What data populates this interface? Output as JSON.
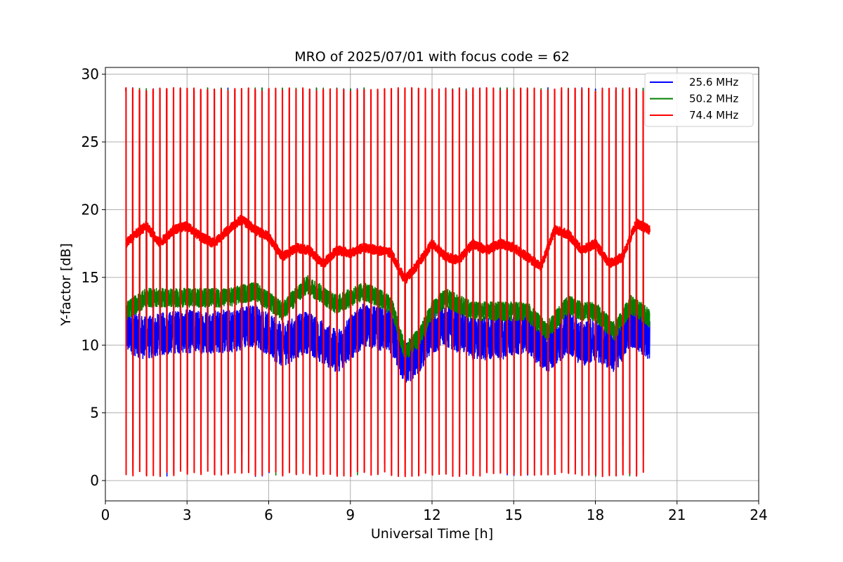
{
  "chart_data": {
    "type": "line",
    "title": "MRO of 2025/07/01 with focus code = 62",
    "xlabel": "Universal Time [h]",
    "ylabel": "Y-factor [dB]",
    "xlim": [
      0,
      24
    ],
    "ylim": [
      -1.5,
      30.5
    ],
    "xticks": [
      0,
      3,
      6,
      9,
      12,
      15,
      18,
      21,
      24
    ],
    "xtick_labels": [
      "0",
      "3",
      "6",
      "9",
      "12",
      "15",
      "18",
      "21",
      "24"
    ],
    "yticks": [
      0,
      5,
      10,
      15,
      20,
      25,
      30
    ],
    "ytick_labels": [
      "0",
      "5",
      "10",
      "15",
      "20",
      "25",
      "30"
    ],
    "grid": true,
    "legend_position": "top-right",
    "data_time_range": [
      0.75,
      20.0
    ],
    "calibration_period_h": 0.25,
    "calibration_spike_level": {
      "25.6 MHz": 29.0,
      "50.2 MHz": 29.0,
      "74.4 MHz": 29.0
    },
    "calibration_dip_level": 0.3,
    "series": [
      {
        "name": "25.6 MHz",
        "color": "#0000ff",
        "x": [
          0.75,
          1.5,
          2.5,
          3.5,
          4.5,
          5.5,
          6.5,
          7.4,
          8.5,
          9.5,
          10.5,
          11.0,
          11.5,
          12.0,
          12.5,
          13.5,
          14.5,
          15.5,
          16.2,
          17.0,
          17.5,
          18.0,
          18.7,
          19.3,
          20.0
        ],
        "y": [
          11.0,
          10.5,
          11.0,
          11.0,
          11.0,
          11.5,
          10.0,
          11.0,
          9.5,
          11.5,
          11.0,
          8.5,
          9.5,
          11.0,
          11.5,
          10.5,
          10.5,
          11.0,
          9.5,
          11.0,
          10.0,
          10.5,
          9.5,
          11.5,
          10.5
        ]
      },
      {
        "name": "50.2 MHz",
        "color": "#008000",
        "x": [
          0.75,
          1.5,
          2.5,
          3.5,
          4.5,
          5.5,
          6.5,
          7.4,
          8.5,
          9.5,
          10.5,
          11.0,
          11.5,
          12.0,
          12.5,
          13.5,
          14.5,
          15.5,
          16.2,
          17.0,
          17.5,
          18.0,
          18.7,
          19.3,
          20.0
        ],
        "y": [
          12.5,
          13.5,
          13.5,
          13.5,
          13.5,
          14.0,
          12.5,
          14.5,
          13.0,
          14.0,
          13.0,
          9.5,
          10.5,
          12.5,
          13.5,
          12.5,
          12.5,
          12.5,
          11.0,
          13.0,
          12.5,
          12.5,
          11.0,
          13.0,
          12.0
        ]
      },
      {
        "name": "74.4 MHz",
        "color": "#ff0000",
        "x": [
          0.75,
          1.0,
          1.5,
          2.0,
          2.5,
          3.0,
          3.5,
          4.0,
          4.5,
          5.0,
          5.5,
          6.0,
          6.5,
          7.0,
          7.5,
          8.0,
          8.5,
          9.0,
          9.5,
          10.0,
          10.5,
          11.0,
          11.5,
          12.0,
          12.5,
          13.0,
          13.5,
          14.0,
          14.5,
          15.0,
          15.5,
          16.0,
          16.5,
          17.0,
          17.5,
          18.0,
          18.5,
          19.0,
          19.5,
          20.0
        ],
        "y": [
          17.5,
          18.0,
          18.8,
          17.5,
          18.5,
          18.8,
          18.0,
          17.5,
          18.5,
          19.3,
          18.5,
          18.0,
          16.5,
          17.2,
          17.0,
          16.0,
          17.0,
          16.8,
          17.2,
          17.0,
          16.8,
          14.8,
          16.0,
          17.5,
          16.5,
          16.3,
          17.5,
          17.0,
          17.5,
          17.2,
          16.5,
          15.8,
          18.5,
          18.2,
          17.0,
          17.5,
          16.0,
          16.5,
          19.0,
          18.5
        ]
      }
    ]
  }
}
